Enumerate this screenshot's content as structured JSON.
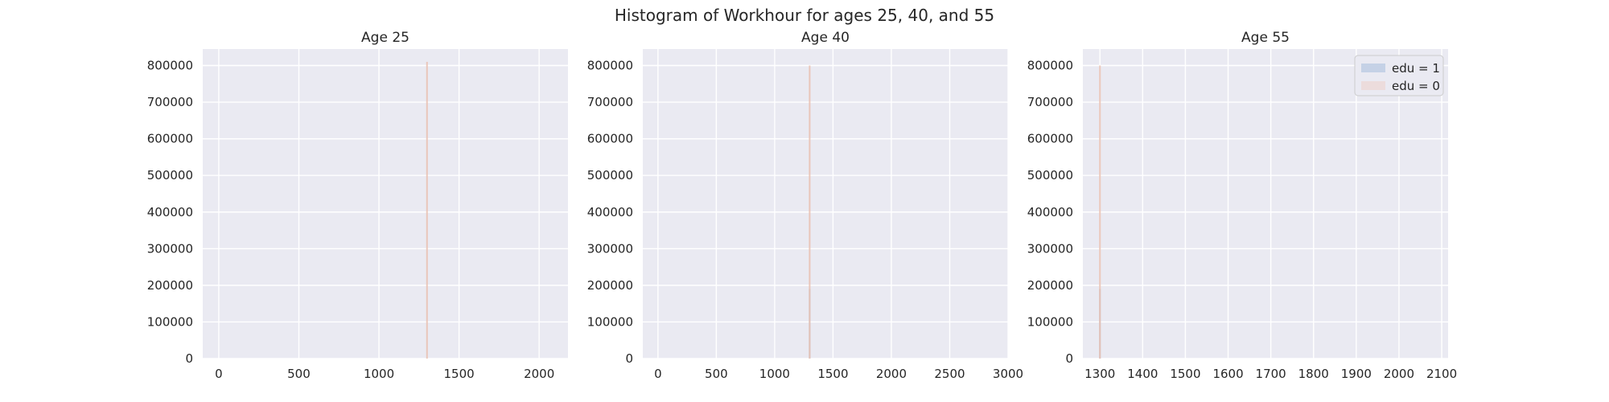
{
  "figure": {
    "title": "Histogram of Workhour for ages 25, 40, and 55"
  },
  "legend": {
    "placement": "top-right of third panel",
    "entries": [
      {
        "label": "edu = 1",
        "color": "#c5d1e6"
      },
      {
        "label": "edu = 0",
        "color": "#ecdcdc"
      }
    ]
  },
  "colors": {
    "panel_background": "#eaeaf2",
    "grid": "#ffffff",
    "edu_1": "#b4bed2",
    "edu_0": "#e9bfb0"
  },
  "chart_data": [
    {
      "type": "bar",
      "title": "Age 25",
      "xlabel": "",
      "ylabel": "",
      "xlim": [
        -100,
        2180
      ],
      "ylim": [
        0,
        845000
      ],
      "xticks": [
        0,
        500,
        1000,
        1500,
        2000
      ],
      "yticks": [
        0,
        100000,
        200000,
        300000,
        400000,
        500000,
        600000,
        700000,
        800000
      ],
      "grid": true,
      "series": [
        {
          "name": "edu = 1",
          "bins": []
        },
        {
          "name": "edu = 0",
          "bins": [
            {
              "x": 1300,
              "height": 810000
            }
          ]
        }
      ]
    },
    {
      "type": "bar",
      "title": "Age 40",
      "xlabel": "",
      "ylabel": "",
      "xlim": [
        -130,
        3000
      ],
      "ylim": [
        0,
        845000
      ],
      "xticks": [
        0,
        500,
        1000,
        1500,
        2000,
        2500,
        3000
      ],
      "yticks": [
        0,
        100000,
        200000,
        300000,
        400000,
        500000,
        600000,
        700000,
        800000
      ],
      "grid": true,
      "series": [
        {
          "name": "edu = 1",
          "bins": [
            {
              "x": 1300,
              "height": 190000
            }
          ]
        },
        {
          "name": "edu = 0",
          "bins": [
            {
              "x": 1300,
              "height": 800000
            }
          ]
        }
      ]
    },
    {
      "type": "bar",
      "title": "Age 55",
      "xlabel": "",
      "ylabel": "",
      "xlim": [
        1260,
        2115
      ],
      "ylim": [
        0,
        845000
      ],
      "xticks": [
        1300,
        1400,
        1500,
        1600,
        1700,
        1800,
        1900,
        2000,
        2100
      ],
      "yticks": [
        0,
        100000,
        200000,
        300000,
        400000,
        500000,
        600000,
        700000,
        800000
      ],
      "grid": true,
      "series": [
        {
          "name": "edu = 1",
          "bins": [
            {
              "x": 1300,
              "height": 190000
            }
          ]
        },
        {
          "name": "edu = 0",
          "bins": [
            {
              "x": 1300,
              "height": 800000
            }
          ]
        }
      ]
    }
  ]
}
